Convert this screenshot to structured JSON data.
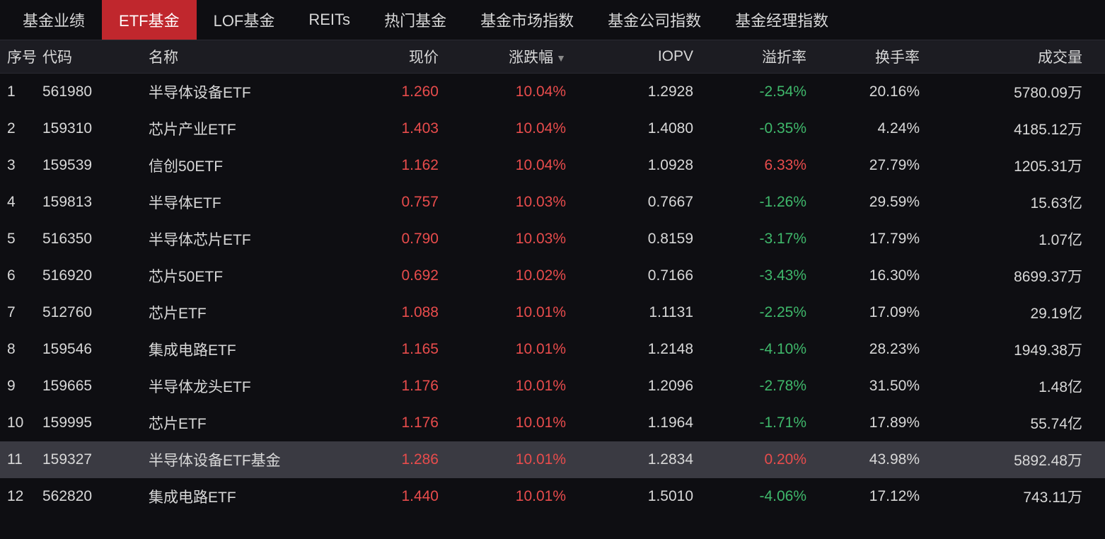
{
  "colors": {
    "background": "#0e0e12",
    "header_bg": "#1c1c22",
    "row_highlight": "#3a3a42",
    "tab_active_bg": "#c0272d",
    "text_default": "#d8d8d8",
    "text_positive": "#e84c4c",
    "text_negative": "#3fb86b"
  },
  "tabs": [
    {
      "label": "基金业绩",
      "active": false
    },
    {
      "label": "ETF基金",
      "active": true
    },
    {
      "label": "LOF基金",
      "active": false
    },
    {
      "label": "REITs",
      "active": false
    },
    {
      "label": "热门基金",
      "active": false
    },
    {
      "label": "基金市场指数",
      "active": false
    },
    {
      "label": "基金公司指数",
      "active": false
    },
    {
      "label": "基金经理指数",
      "active": false
    }
  ],
  "table": {
    "columns": [
      {
        "key": "seq",
        "label": "序号",
        "align": "left"
      },
      {
        "key": "code",
        "label": "代码",
        "align": "left"
      },
      {
        "key": "name",
        "label": "名称",
        "align": "left"
      },
      {
        "key": "price",
        "label": "现价",
        "align": "right"
      },
      {
        "key": "change",
        "label": "涨跌幅",
        "align": "right",
        "sorted": true
      },
      {
        "key": "iopv",
        "label": "IOPV",
        "align": "right"
      },
      {
        "key": "premium",
        "label": "溢折率",
        "align": "right"
      },
      {
        "key": "turnover",
        "label": "换手率",
        "align": "right"
      },
      {
        "key": "volume",
        "label": "成交量",
        "align": "right"
      }
    ],
    "rows": [
      {
        "seq": "1",
        "code": "561980",
        "name": "半导体设备ETF",
        "price": "1.260",
        "change": "10.04%",
        "change_sign": "pos",
        "iopv": "1.2928",
        "premium": "-2.54%",
        "premium_sign": "neg",
        "turnover": "20.16%",
        "volume": "5780.09万",
        "highlighted": false
      },
      {
        "seq": "2",
        "code": "159310",
        "name": "芯片产业ETF",
        "price": "1.403",
        "change": "10.04%",
        "change_sign": "pos",
        "iopv": "1.4080",
        "premium": "-0.35%",
        "premium_sign": "neg",
        "turnover": "4.24%",
        "volume": "4185.12万",
        "highlighted": false
      },
      {
        "seq": "3",
        "code": "159539",
        "name": "信创50ETF",
        "price": "1.162",
        "change": "10.04%",
        "change_sign": "pos",
        "iopv": "1.0928",
        "premium": "6.33%",
        "premium_sign": "pos",
        "turnover": "27.79%",
        "volume": "1205.31万",
        "highlighted": false
      },
      {
        "seq": "4",
        "code": "159813",
        "name": "半导体ETF",
        "price": "0.757",
        "change": "10.03%",
        "change_sign": "pos",
        "iopv": "0.7667",
        "premium": "-1.26%",
        "premium_sign": "neg",
        "turnover": "29.59%",
        "volume": "15.63亿",
        "highlighted": false
      },
      {
        "seq": "5",
        "code": "516350",
        "name": "半导体芯片ETF",
        "price": "0.790",
        "change": "10.03%",
        "change_sign": "pos",
        "iopv": "0.8159",
        "premium": "-3.17%",
        "premium_sign": "neg",
        "turnover": "17.79%",
        "volume": "1.07亿",
        "highlighted": false
      },
      {
        "seq": "6",
        "code": "516920",
        "name": "芯片50ETF",
        "price": "0.692",
        "change": "10.02%",
        "change_sign": "pos",
        "iopv": "0.7166",
        "premium": "-3.43%",
        "premium_sign": "neg",
        "turnover": "16.30%",
        "volume": "8699.37万",
        "highlighted": false
      },
      {
        "seq": "7",
        "code": "512760",
        "name": "芯片ETF",
        "price": "1.088",
        "change": "10.01%",
        "change_sign": "pos",
        "iopv": "1.1131",
        "premium": "-2.25%",
        "premium_sign": "neg",
        "turnover": "17.09%",
        "volume": "29.19亿",
        "highlighted": false
      },
      {
        "seq": "8",
        "code": "159546",
        "name": "集成电路ETF",
        "price": "1.165",
        "change": "10.01%",
        "change_sign": "pos",
        "iopv": "1.2148",
        "premium": "-4.10%",
        "premium_sign": "neg",
        "turnover": "28.23%",
        "volume": "1949.38万",
        "highlighted": false
      },
      {
        "seq": "9",
        "code": "159665",
        "name": "半导体龙头ETF",
        "price": "1.176",
        "change": "10.01%",
        "change_sign": "pos",
        "iopv": "1.2096",
        "premium": "-2.78%",
        "premium_sign": "neg",
        "turnover": "31.50%",
        "volume": "1.48亿",
        "highlighted": false
      },
      {
        "seq": "10",
        "code": "159995",
        "name": "芯片ETF",
        "price": "1.176",
        "change": "10.01%",
        "change_sign": "pos",
        "iopv": "1.1964",
        "premium": "-1.71%",
        "premium_sign": "neg",
        "turnover": "17.89%",
        "volume": "55.74亿",
        "highlighted": false
      },
      {
        "seq": "11",
        "code": "159327",
        "name": "半导体设备ETF基金",
        "price": "1.286",
        "change": "10.01%",
        "change_sign": "pos",
        "iopv": "1.2834",
        "premium": "0.20%",
        "premium_sign": "pos",
        "turnover": "43.98%",
        "volume": "5892.48万",
        "highlighted": true
      },
      {
        "seq": "12",
        "code": "562820",
        "name": "集成电路ETF",
        "price": "1.440",
        "change": "10.01%",
        "change_sign": "pos",
        "iopv": "1.5010",
        "premium": "-4.06%",
        "premium_sign": "neg",
        "turnover": "17.12%",
        "volume": "743.11万",
        "highlighted": false
      }
    ]
  }
}
